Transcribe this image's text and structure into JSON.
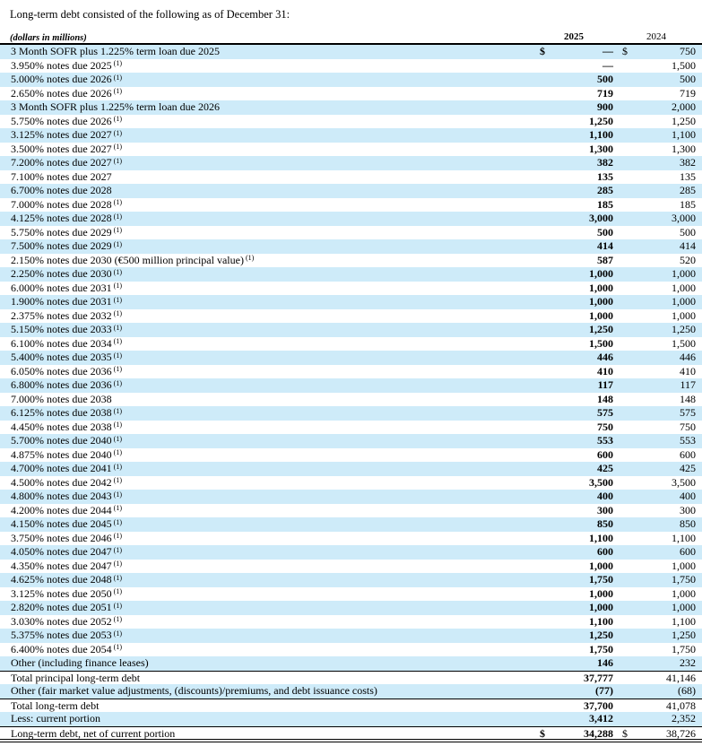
{
  "title": "Long-term debt consisted of the following as of December 31:",
  "colors": {
    "row_shade": "#ceebf9",
    "rule": "#000000"
  },
  "table": {
    "currency_symbol": "$",
    "header": {
      "label": "(dollars in millions)",
      "col_2025": "2025",
      "col_2024": "2024"
    },
    "rows": [
      {
        "label": "3 Month SOFR plus 1.225% term loan due 2025",
        "dollar": true,
        "v2025": "—",
        "v2024": "750"
      },
      {
        "label": "3.950% notes due 2025",
        "sup": "(1)",
        "v2025": "—",
        "v2024": "1,500"
      },
      {
        "label": "5.000% notes due 2026",
        "sup": "(1)",
        "v2025": "500",
        "v2024": "500"
      },
      {
        "label": "2.650% notes due 2026",
        "sup": "(1)",
        "v2025": "719",
        "v2024": "719"
      },
      {
        "label": "3 Month SOFR plus 1.225% term loan due 2026",
        "v2025": "900",
        "v2024": "2,000"
      },
      {
        "label": "5.750% notes due 2026",
        "sup": "(1)",
        "v2025": "1,250",
        "v2024": "1,250"
      },
      {
        "label": "3.125% notes due 2027",
        "sup": "(1)",
        "v2025": "1,100",
        "v2024": "1,100"
      },
      {
        "label": "3.500% notes due 2027",
        "sup": "(1)",
        "v2025": "1,300",
        "v2024": "1,300"
      },
      {
        "label": "7.200% notes due 2027",
        "sup": "(1)",
        "v2025": "382",
        "v2024": "382"
      },
      {
        "label": "7.100% notes due 2027",
        "v2025": "135",
        "v2024": "135"
      },
      {
        "label": "6.700% notes due 2028",
        "v2025": "285",
        "v2024": "285"
      },
      {
        "label": "7.000% notes due 2028",
        "sup": "(1)",
        "v2025": "185",
        "v2024": "185"
      },
      {
        "label": "4.125% notes due 2028",
        "sup": "(1)",
        "v2025": "3,000",
        "v2024": "3,000"
      },
      {
        "label": "5.750% notes due 2029",
        "sup": "(1)",
        "v2025": "500",
        "v2024": "500"
      },
      {
        "label": "7.500% notes due 2029",
        "sup": "(1)",
        "v2025": "414",
        "v2024": "414"
      },
      {
        "label": "2.150% notes due 2030 (€500 million principal value)",
        "sup": "(1)",
        "v2025": "587",
        "v2024": "520"
      },
      {
        "label": "2.250% notes due 2030",
        "sup": "(1)",
        "v2025": "1,000",
        "v2024": "1,000"
      },
      {
        "label": "6.000% notes due 2031",
        "sup": "(1)",
        "v2025": "1,000",
        "v2024": "1,000"
      },
      {
        "label": "1.900% notes due 2031",
        "sup": "(1)",
        "v2025": "1,000",
        "v2024": "1,000"
      },
      {
        "label": "2.375% notes due 2032",
        "sup": "(1)",
        "v2025": "1,000",
        "v2024": "1,000"
      },
      {
        "label": "5.150% notes due 2033",
        "sup": "(1)",
        "v2025": "1,250",
        "v2024": "1,250"
      },
      {
        "label": "6.100% notes due 2034",
        "sup": "(1)",
        "v2025": "1,500",
        "v2024": "1,500"
      },
      {
        "label": "5.400% notes due 2035",
        "sup": "(1)",
        "v2025": "446",
        "v2024": "446"
      },
      {
        "label": "6.050% notes due 2036",
        "sup": "(1)",
        "v2025": "410",
        "v2024": "410"
      },
      {
        "label": "6.800% notes due 2036",
        "sup": "(1)",
        "v2025": "117",
        "v2024": "117"
      },
      {
        "label": "7.000% notes due 2038",
        "v2025": "148",
        "v2024": "148"
      },
      {
        "label": "6.125% notes due 2038",
        "sup": "(1)",
        "v2025": "575",
        "v2024": "575"
      },
      {
        "label": "4.450% notes due 2038",
        "sup": "(1)",
        "v2025": "750",
        "v2024": "750"
      },
      {
        "label": "5.700% notes due 2040",
        "sup": "(1)",
        "v2025": "553",
        "v2024": "553"
      },
      {
        "label": "4.875% notes due 2040",
        "sup": "(1)",
        "v2025": "600",
        "v2024": "600"
      },
      {
        "label": "4.700% notes due 2041",
        "sup": "(1)",
        "v2025": "425",
        "v2024": "425"
      },
      {
        "label": "4.500% notes due 2042",
        "sup": "(1)",
        "v2025": "3,500",
        "v2024": "3,500"
      },
      {
        "label": "4.800% notes due 2043",
        "sup": "(1)",
        "v2025": "400",
        "v2024": "400"
      },
      {
        "label": "4.200% notes due 2044",
        "sup": "(1)",
        "v2025": "300",
        "v2024": "300"
      },
      {
        "label": "4.150% notes due 2045",
        "sup": "(1)",
        "v2025": "850",
        "v2024": "850"
      },
      {
        "label": "3.750% notes due 2046",
        "sup": "(1)",
        "v2025": "1,100",
        "v2024": "1,100"
      },
      {
        "label": "4.050% notes due 2047",
        "sup": "(1)",
        "v2025": "600",
        "v2024": "600"
      },
      {
        "label": "4.350% notes due 2047",
        "sup": "(1)",
        "v2025": "1,000",
        "v2024": "1,000"
      },
      {
        "label": "4.625% notes due 2048",
        "sup": "(1)",
        "v2025": "1,750",
        "v2024": "1,750"
      },
      {
        "label": "3.125% notes due 2050",
        "sup": "(1)",
        "v2025": "1,000",
        "v2024": "1,000"
      },
      {
        "label": "2.820% notes due 2051",
        "sup": "(1)",
        "v2025": "1,000",
        "v2024": "1,000"
      },
      {
        "label": "3.030% notes due 2052",
        "sup": "(1)",
        "v2025": "1,100",
        "v2024": "1,100"
      },
      {
        "label": "5.375% notes due 2053",
        "sup": "(1)",
        "v2025": "1,250",
        "v2024": "1,250"
      },
      {
        "label": "6.400% notes due 2054",
        "sup": "(1)",
        "v2025": "1,750",
        "v2024": "1,750"
      },
      {
        "label": "Other (including finance leases)",
        "v2025": "146",
        "v2024": "232"
      },
      {
        "label": "Total principal long-term debt",
        "border_top": true,
        "v2025": "37,777",
        "v2024": "41,146"
      },
      {
        "label": "Other (fair market value adjustments, (discounts)/premiums, and debt issuance costs)",
        "v2025": "(77)",
        "v2024": "(68)"
      },
      {
        "label": "Total long-term debt",
        "border_top": true,
        "v2025": "37,700",
        "v2024": "41,078"
      },
      {
        "label": "Less: current portion",
        "v2025": "3,412",
        "v2024": "2,352"
      },
      {
        "label": "Long-term debt, net of current portion",
        "dollar": true,
        "border_top": true,
        "double_bottom": true,
        "v2025": "34,288",
        "v2024": "38,726"
      }
    ]
  }
}
